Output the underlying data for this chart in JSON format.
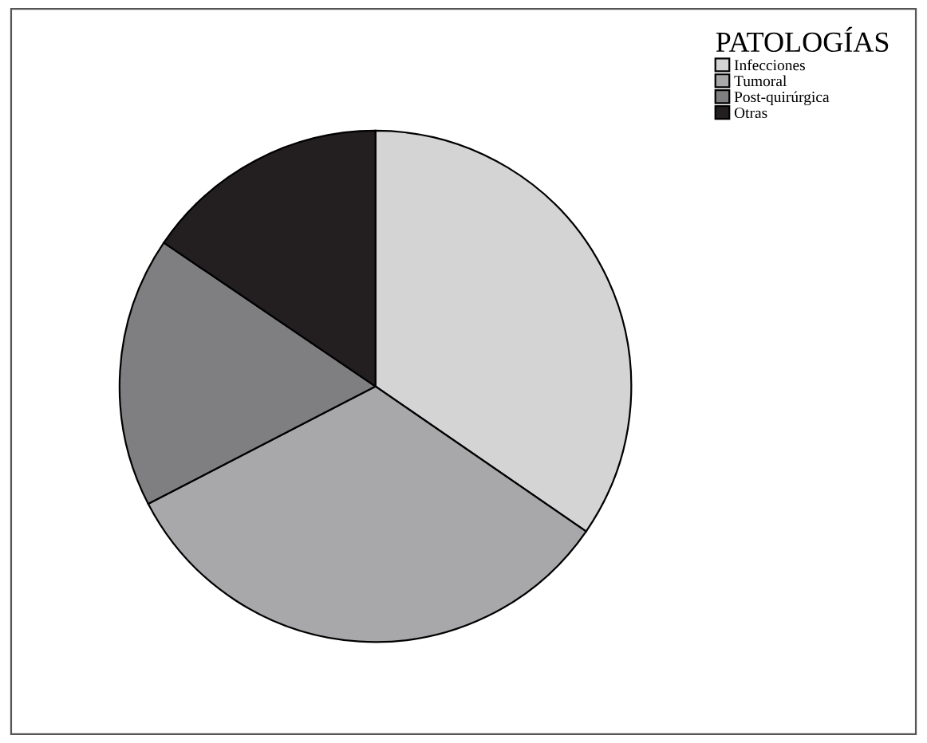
{
  "chart_data": {
    "type": "pie",
    "legend_title": "PATOLOGÍAS",
    "categories": [
      "Infecciones",
      "Tumoral",
      "Post-quirúrgica",
      "Otras"
    ],
    "values": [
      34.6,
      32.8,
      17.1,
      15.5
    ],
    "colors": [
      "#d4d4d4",
      "#a8a8aa",
      "#7f7f82",
      "#231f20"
    ],
    "legend": "top right"
  }
}
